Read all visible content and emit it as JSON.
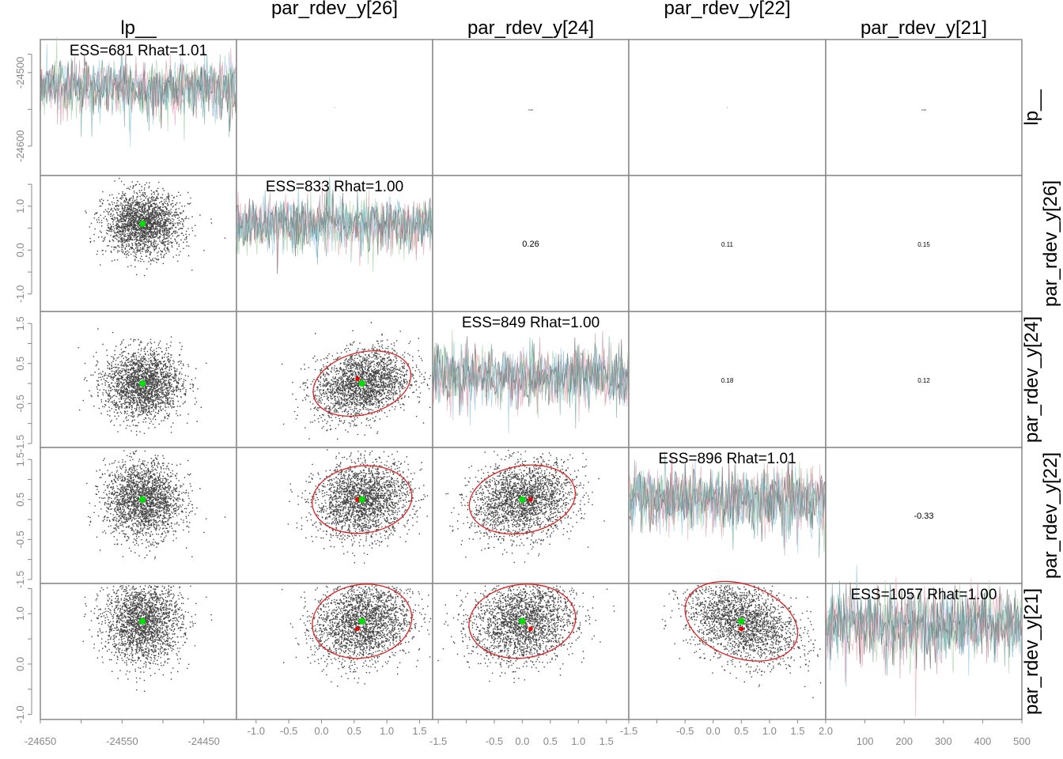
{
  "chart_data": {
    "type": "scatter",
    "title": "",
    "layout": "pairs-matrix-5x5",
    "variables": [
      "lp__",
      "par_rdev_y[26]",
      "par_rdev_y[24]",
      "par_rdev_y[22]",
      "par_rdev_y[21]"
    ],
    "column_titles": [
      "lp__",
      "par_rdev_y[26]",
      "par_rdev_y[24]",
      "par_rdev_y[22]",
      "par_rdev_y[21]"
    ],
    "row_titles": [
      "lp__",
      "par_rdev_y[26]",
      "par_rdev_y[24]",
      "par_rdev_y[22]",
      "par_rdev_y[21]"
    ],
    "chain_colors": [
      "#e8a0b0",
      "#9ed19e",
      "#8fc4e8",
      "#555555",
      "#c98f9f",
      "#6aa6a0"
    ],
    "point_color": "#000000",
    "marker_colors": {
      "posterior_mean": "#00dd00",
      "reference": "#ee0000",
      "ellipse": "#dd2222"
    },
    "diagonal": [
      {
        "variable": "lp__",
        "ess": 681,
        "rhat": "1.01",
        "label": "ESS=681 Rhat=1.01",
        "center": -24520,
        "spread": 18,
        "ylim": [
          -24640,
          -24455
        ]
      },
      {
        "variable": "par_rdev_y[26]",
        "ess": 833,
        "rhat": "1.00",
        "label": "ESS=833 Rhat=1.00",
        "center": 0.6,
        "spread": 0.28,
        "ylim": [
          -1.4,
          1.7
        ]
      },
      {
        "variable": "par_rdev_y[24]",
        "ess": 849,
        "rhat": "1.00",
        "label": "ESS=849 Rhat=1.00",
        "center": 0.2,
        "spread": 0.35,
        "ylim": [
          -1.6,
          1.8
        ]
      },
      {
        "variable": "par_rdev_y[22]",
        "ess": 896,
        "rhat": "1.01",
        "label": "ESS=896 Rhat=1.01",
        "center": 0.5,
        "spread": 0.38,
        "ylim": [
          -1.6,
          1.8
        ]
      },
      {
        "variable": "par_rdev_y[21]",
        "ess": 1057,
        "rhat": "1.00",
        "label": "ESS=1057 Rhat=1.00",
        "center": 0.8,
        "spread": 0.33,
        "ylim": [
          -1.1,
          1.6
        ]
      }
    ],
    "upper_correlations": [
      {
        "row": 0,
        "col": 1,
        "value": "",
        "size": "tiny"
      },
      {
        "row": 0,
        "col": 2,
        "value": "0.02",
        "size": "tiny"
      },
      {
        "row": 0,
        "col": 3,
        "value": "",
        "size": "tiny"
      },
      {
        "row": 0,
        "col": 4,
        "value": "0.02",
        "size": "tiny"
      },
      {
        "row": 1,
        "col": 2,
        "value": "0.26",
        "size": "medium"
      },
      {
        "row": 1,
        "col": 3,
        "value": "0.11",
        "size": "small"
      },
      {
        "row": 1,
        "col": 4,
        "value": "0.15",
        "size": "small"
      },
      {
        "row": 2,
        "col": 3,
        "value": "0.18",
        "size": "small"
      },
      {
        "row": 2,
        "col": 4,
        "value": "0.12",
        "size": "small"
      },
      {
        "row": 3,
        "col": 4,
        "value": "-0.33",
        "size": "medium"
      }
    ],
    "lower_scatter": [
      {
        "row": 1,
        "col": 0,
        "mean": [
          -24525,
          0.6
        ],
        "ellipse": false
      },
      {
        "row": 2,
        "col": 0,
        "mean": [
          -24525,
          0.0
        ],
        "ellipse": false
      },
      {
        "row": 3,
        "col": 0,
        "mean": [
          -24525,
          0.5
        ],
        "ellipse": false
      },
      {
        "row": 4,
        "col": 0,
        "mean": [
          -24525,
          0.85
        ],
        "ellipse": false
      },
      {
        "row": 2,
        "col": 1,
        "mean": [
          0.62,
          0.0
        ],
        "ref": [
          0.55,
          0.12
        ],
        "ellipse": true,
        "corr": 0.26
      },
      {
        "row": 3,
        "col": 1,
        "mean": [
          0.62,
          0.5
        ],
        "ref": [
          0.55,
          0.5
        ],
        "ellipse": true,
        "corr": 0.11
      },
      {
        "row": 4,
        "col": 1,
        "mean": [
          0.62,
          0.85
        ],
        "ref": [
          0.55,
          0.7
        ],
        "ellipse": true,
        "corr": 0.15
      },
      {
        "row": 3,
        "col": 2,
        "mean": [
          0.0,
          0.5
        ],
        "ref": [
          0.15,
          0.5
        ],
        "ellipse": true,
        "corr": 0.18
      },
      {
        "row": 4,
        "col": 2,
        "mean": [
          0.0,
          0.85
        ],
        "ref": [
          0.15,
          0.7
        ],
        "ellipse": true,
        "corr": 0.12
      },
      {
        "row": 4,
        "col": 3,
        "mean": [
          0.5,
          0.85
        ],
        "ref": [
          0.5,
          0.7
        ],
        "ellipse": true,
        "corr": -0.33
      }
    ],
    "x_axes": [
      {
        "col": 0,
        "range": [
          -24650,
          -24410
        ],
        "ticks": [
          -24650,
          -24600,
          -24550,
          -24500,
          -24450
        ],
        "tick_labels": [
          "-24650",
          "",
          "-24550",
          "",
          "-24450"
        ],
        "label_row": "low"
      },
      {
        "col": 1,
        "range": [
          -1.3,
          1.7
        ],
        "ticks": [
          -1.0,
          -0.5,
          0.0,
          0.5,
          1.0,
          1.5
        ],
        "tick_labels": [
          "-1.0",
          "-0.5",
          "0.0",
          "0.5",
          "1.0",
          "1.5"
        ],
        "label_row": "high"
      },
      {
        "col": 2,
        "range": [
          -1.6,
          1.9
        ],
        "ticks": [
          -1.5,
          -1.0,
          -0.5,
          0.0,
          0.5,
          1.0,
          1.5
        ],
        "tick_labels": [
          "-1.5",
          "",
          "-0.5",
          "0.0",
          "0.5",
          "1.0",
          "1.5"
        ],
        "label_row": "low"
      },
      {
        "col": 3,
        "range": [
          -1.5,
          2.0
        ],
        "ticks": [
          -1.5,
          -1.0,
          -0.5,
          0.0,
          0.5,
          1.0,
          1.5,
          2.0
        ],
        "tick_labels": [
          "-1.5",
          "",
          "-0.5",
          "0.0",
          "0.5",
          "1.0",
          "1.5",
          "2.0"
        ],
        "label_row": "high"
      },
      {
        "col": 4,
        "range": [
          0,
          500
        ],
        "ticks": [
          100,
          200,
          300,
          400,
          500
        ],
        "tick_labels": [
          "100",
          "200",
          "300",
          "400",
          "500"
        ],
        "label_row": "low"
      }
    ],
    "y_axes": [
      {
        "row": 0,
        "range": [
          -24640,
          -24455
        ],
        "ticks": [
          -24600,
          -24550,
          -24500,
          -24475
        ],
        "tick_labels": [
          "-24600",
          "",
          "-24500",
          ""
        ]
      },
      {
        "row": 1,
        "range": [
          -1.4,
          1.7
        ],
        "ticks": [
          -1.0,
          -0.5,
          0.0,
          0.5,
          1.0,
          1.5
        ],
        "tick_labels": [
          "-1.0",
          "",
          "0.0",
          "",
          "1.0",
          ""
        ]
      },
      {
        "row": 2,
        "range": [
          -1.6,
          1.8
        ],
        "ticks": [
          -1.5,
          -1.0,
          -0.5,
          0.0,
          0.5,
          1.0,
          1.5
        ],
        "tick_labels": [
          "-1.5",
          "",
          "-0.5",
          "",
          "0.5",
          "",
          "1.5"
        ]
      },
      {
        "row": 3,
        "range": [
          -1.6,
          1.8
        ],
        "ticks": [
          -1.5,
          -1.0,
          -0.5,
          0.0,
          0.5,
          1.0,
          1.5
        ],
        "tick_labels": [
          "-1.5",
          "",
          "-0.5",
          "",
          "0.5",
          "",
          "1.5"
        ]
      },
      {
        "row": 4,
        "range": [
          -1.1,
          1.6
        ],
        "ticks": [
          -1.0,
          -0.5,
          0.0,
          0.5,
          1.0,
          1.5
        ],
        "tick_labels": [
          "-1.0",
          "",
          "0.0",
          "",
          "1.0",
          ""
        ]
      }
    ],
    "iterations": 500,
    "grid": false,
    "legend": "none"
  }
}
